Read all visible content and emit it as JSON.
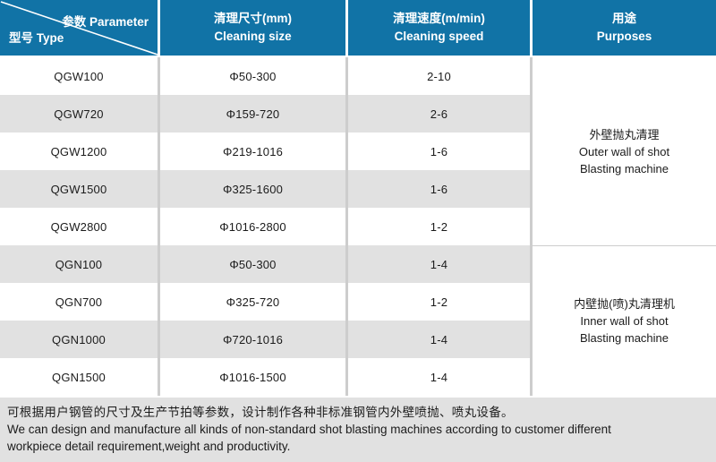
{
  "table": {
    "header": {
      "corner_top_right": "参数 Parameter",
      "corner_bottom_left": "型号 Type",
      "columns": [
        {
          "zh": "清理尺寸(mm)",
          "en": "Cleaning size"
        },
        {
          "zh": "清理速度(m/min)",
          "en": "Cleaning speed"
        },
        {
          "zh": "用途",
          "en": "Purposes"
        }
      ]
    },
    "rows": [
      {
        "model": "QGW100",
        "size": "Φ50-300",
        "speed": "2-10"
      },
      {
        "model": "QGW720",
        "size": "Φ159-720",
        "speed": "2-6"
      },
      {
        "model": "QGW1200",
        "size": "Φ219-1016",
        "speed": "1-6"
      },
      {
        "model": "QGW1500",
        "size": "Φ325-1600",
        "speed": "1-6"
      },
      {
        "model": "QGW2800",
        "size": "Φ1016-2800",
        "speed": "1-2"
      },
      {
        "model": "QGN100",
        "size": "Φ50-300",
        "speed": "1-4"
      },
      {
        "model": "QGN700",
        "size": "Φ325-720",
        "speed": "1-2"
      },
      {
        "model": "QGN1000",
        "size": "Φ720-1016",
        "speed": "1-4"
      },
      {
        "model": "QGN1500",
        "size": "Φ1016-1500",
        "speed": "1-4"
      }
    ],
    "purposes": [
      {
        "lines": [
          "外壁抛丸清理",
          "Outer wall of shot",
          "Blasting machine"
        ],
        "row_span": 5
      },
      {
        "lines": [
          "内壁抛(喷)丸清理机",
          "Inner wall of shot",
          "Blasting machine"
        ],
        "row_span": 4
      }
    ]
  },
  "footer": {
    "zh": "可根据用户钢管的尺寸及生产节拍等参数，设计制作各种非标准钢管内外壁喷抛、喷丸设备。",
    "en_line1": "We can design and manufacture all kinds of non-standard shot blasting machines according to customer different",
    "en_line2": "workpiece detail requirement,weight and productivity."
  },
  "colors": {
    "header_blue": "#1173a6",
    "row_alt_gray": "#e1e1e1",
    "grid_line_gray": "#cdcdcd",
    "text_dark": "#1b1b1b",
    "header_text": "#ffffff"
  }
}
